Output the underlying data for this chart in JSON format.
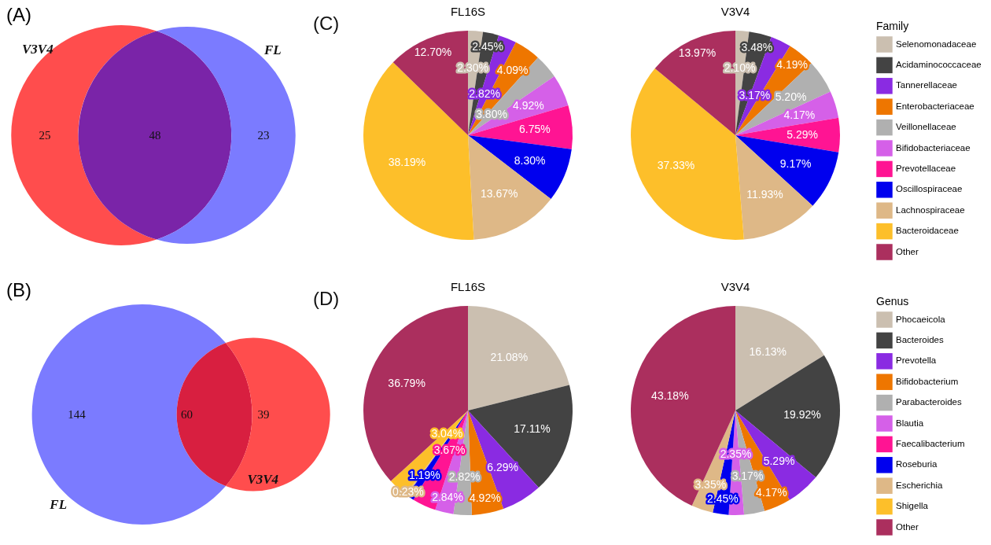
{
  "chart_data": [
    {
      "type": "other",
      "title": "(A)",
      "data_labels": true,
      "categories": [
        null,
        null,
        null
      ],
      "values": [
        25,
        48,
        23
      ],
      "colors": [
        "#ff4d4d",
        "#7a24a8",
        "#7b7bff"
      ],
      "annotations": [
        "V3V4",
        "FL"
      ]
    },
    {
      "type": "pie",
      "annotations": [
        "(C)"
      ],
      "legend": "right",
      "legend_title": "Family",
      "categories": [
        "Selenomonadaceae",
        "Acidaminococcaceae",
        "Tannerellaceae",
        "Enterobacteriaceae",
        "Veillonellaceae",
        "Bifidobacteriaceae",
        "Prevotellaceae",
        "Oscillospiraceae",
        "Lachnospiraceae",
        "Bacteroidaceae",
        "Other"
      ],
      "colors": [
        "#cbbfb0",
        "#434343",
        "#8a2be2",
        "#ee7600",
        "#b0b0b0",
        "#d560e8",
        "#ff1493",
        "#0000ee",
        "#deb887",
        "#fdbf2a",
        "#ab2f5e"
      ],
      "series": [
        {
          "name": "FL16S",
          "values": [
            2.3,
            2.45,
            2.82,
            4.09,
            3.8,
            4.92,
            6.75,
            8.3,
            13.67,
            38.19,
            12.7
          ],
          "value_labels": [
            "2.30%",
            "2.45%",
            "2.82%",
            "4.09%",
            "3.80%",
            "4.92%",
            "6.75%",
            "8.30%",
            "13.67%",
            "38.19%",
            "12.70%"
          ]
        },
        {
          "name": "V3V4",
          "values": [
            2.1,
            3.48,
            3.17,
            4.19,
            5.2,
            4.17,
            5.29,
            9.17,
            11.93,
            37.33,
            13.97
          ],
          "value_labels": [
            "2.10%",
            "3.48%",
            "3.17%",
            "4.19%",
            "5.20%",
            "4.17%",
            "5.29%",
            "9.17%",
            "11.93%",
            "37.33%",
            "13.97%"
          ]
        }
      ]
    },
    {
      "type": "other",
      "title": "(B)",
      "data_labels": true,
      "categories": [
        null,
        null,
        null
      ],
      "values": [
        144,
        60,
        39
      ],
      "colors": [
        "#7b7bff",
        "#d81f40",
        "#ff4d4d"
      ],
      "annotations": [
        "FL",
        "V3V4"
      ]
    },
    {
      "type": "pie",
      "annotations": [
        "(D)"
      ],
      "legend": "right",
      "legend_title": "Genus",
      "categories": [
        "Phocaeicola",
        "Bacteroides",
        "Prevotella",
        "Bifidobacterium",
        "Parabacteroides",
        "Blautia",
        "Faecalibacterium",
        "Roseburia",
        "Escherichia",
        "Shigella",
        "Other"
      ],
      "colors": [
        "#cbbfb0",
        "#434343",
        "#8a2be2",
        "#ee7600",
        "#b0b0b0",
        "#d560e8",
        "#ff1493",
        "#0000ee",
        "#deb887",
        "#fdbf2a",
        "#ab2f5e"
      ],
      "series": [
        {
          "name": "FL16S",
          "values": [
            21.08,
            17.11,
            6.29,
            4.92,
            2.82,
            2.84,
            3.67,
            1.19,
            0.23,
            3.04,
            36.79
          ],
          "value_labels": [
            "21.08%",
            "17.11%",
            "6.29%",
            "4.92%",
            "2.82%",
            "2.84%",
            "3.67%",
            "1.19%",
            "0.23%",
            "3.04%",
            "36.79%"
          ]
        },
        {
          "name": "V3V4",
          "values": [
            16.13,
            19.92,
            5.29,
            4.17,
            3.17,
            2.35,
            null,
            2.45,
            3.35,
            null,
            43.18
          ],
          "value_labels": [
            "16.13%",
            "19.92%",
            "5.29%",
            "4.17%",
            "3.17%",
            "2.35%",
            null,
            "2.45%",
            "3.35%",
            null,
            "43.18%"
          ]
        }
      ]
    }
  ]
}
